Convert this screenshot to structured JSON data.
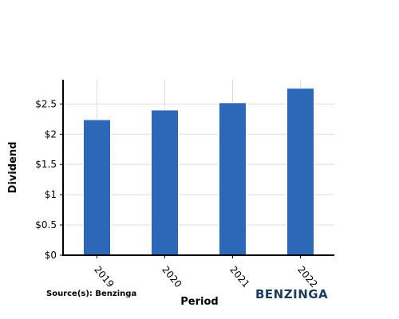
{
  "chart_data": {
    "type": "bar",
    "categories": [
      "2019",
      "2020",
      "2021",
      "2022"
    ],
    "values": [
      2.24,
      2.4,
      2.52,
      2.76
    ],
    "xlabel": "Period",
    "ylabel": "Dividend",
    "ylim": [
      0,
      2.9
    ],
    "yticks": [
      0,
      0.5,
      1,
      1.5,
      2,
      2.5
    ],
    "ytick_labels": [
      "$0",
      "$0.5",
      "$1",
      "$1.5",
      "$2",
      "$2.5"
    ],
    "grid": true,
    "bar_color": "#2d67b8",
    "grid_color": "#dddddd"
  },
  "source": "Source(s): Benzinga",
  "brand": "BENZINGA"
}
